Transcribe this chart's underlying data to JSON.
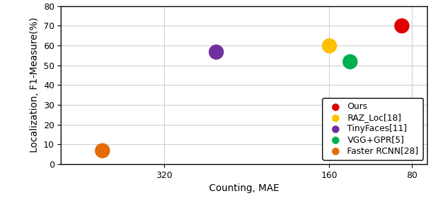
{
  "points": [
    {
      "label": "Ours",
      "color": "#e00000",
      "mae": 90,
      "f1": 70
    },
    {
      "label": "RAZ_Loc[18]",
      "color": "#ffc000",
      "mae": 160,
      "f1": 60
    },
    {
      "label": "TinyFaces[11]",
      "color": "#7030a0",
      "mae": 270,
      "f1": 57
    },
    {
      "label": "VGG+GPR[5]",
      "color": "#00b050",
      "mae": 140,
      "f1": 52
    },
    {
      "label": "Faster RCNN[28]",
      "color": "#e36c09",
      "mae": 380,
      "f1": 7
    }
  ],
  "xlabel": "Counting, MAE",
  "ylabel": "Localization, F1-Measure(%)",
  "xlim": [
    420,
    65
  ],
  "ylim": [
    0,
    80
  ],
  "xticks": [
    320,
    160,
    80
  ],
  "yticks": [
    0,
    10,
    20,
    30,
    40,
    50,
    60,
    70,
    80
  ],
  "marker_size": 250,
  "grid_color": "#d0d0d0",
  "legend_fontsize": 9,
  "axis_label_fontsize": 10,
  "tick_fontsize": 9
}
